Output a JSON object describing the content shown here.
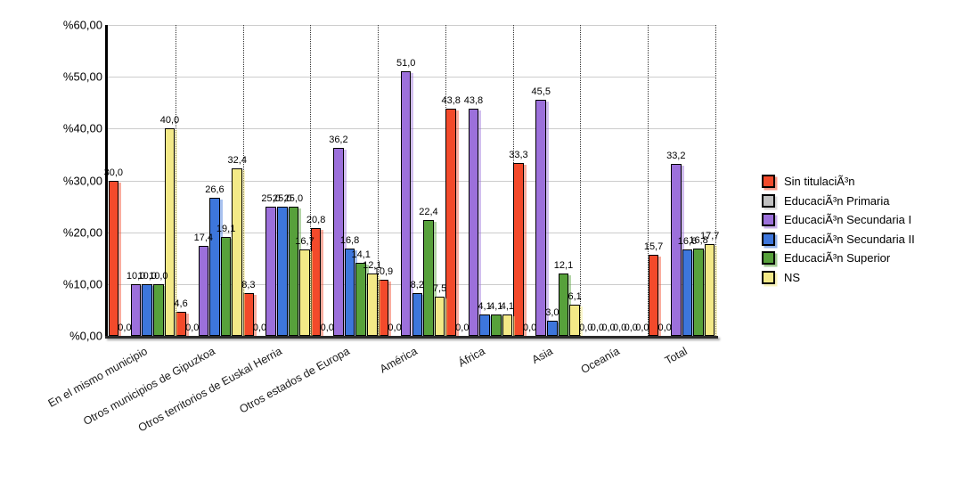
{
  "chart_data": {
    "type": "bar",
    "title": "",
    "xlabel": "",
    "ylabel": "",
    "categories": [
      "En el mismo municipio",
      "Otros municipios de Gipuzkoa",
      "Otros territorios de Euskal Herria",
      "Otros estados de Europa",
      "América",
      "África",
      "Asia",
      "Oceanía",
      "Total"
    ],
    "series": [
      {
        "name": "Sin titulaciÃ³n",
        "color": "#F34A2B",
        "values": [
          30.0,
          4.6,
          8.3,
          20.8,
          10.9,
          43.8,
          33.3,
          0.0,
          15.7
        ]
      },
      {
        "name": "EducaciÃ³n Primaria",
        "color": "#C0C0C0",
        "values": [
          0.0,
          0.0,
          0.0,
          0.0,
          0.0,
          0.0,
          0.0,
          0.0,
          0.0
        ]
      },
      {
        "name": "EducaciÃ³n Secundaria I",
        "color": "#9C70DB",
        "values": [
          10.0,
          17.4,
          25.0,
          36.2,
          51.0,
          43.8,
          45.5,
          0.0,
          33.2
        ]
      },
      {
        "name": "EducaciÃ³n Secundaria II",
        "color": "#3D76DC",
        "values": [
          10.0,
          26.6,
          25.0,
          16.8,
          8.2,
          4.1,
          3.0,
          0.0,
          16.6
        ]
      },
      {
        "name": "EducaciÃ³n Superior",
        "color": "#57A13B",
        "values": [
          10.0,
          19.1,
          25.0,
          14.1,
          22.4,
          4.1,
          12.1,
          0.0,
          16.8
        ]
      },
      {
        "name": "NS",
        "color": "#F3E987",
        "values": [
          40.0,
          32.4,
          16.7,
          12.1,
          7.5,
          4.1,
          6.1,
          0.0,
          17.7
        ]
      }
    ],
    "ylim": [
      0,
      60
    ],
    "ytick_step": 10,
    "ytick_labels": [
      "%60,00",
      "%50,00",
      "%40,00",
      "%30,00",
      "%20,00",
      "%10,00",
      "%0,00"
    ],
    "value_label_decimal_separator": ",",
    "value_label_decimals": 1,
    "grid": "horizontal solid gridlines + vertical dotted category separators",
    "legend_position": "right"
  },
  "colors": {
    "background": "#ffffff",
    "gridline": "#cccccc",
    "separator": "#333333",
    "axis": "#000000",
    "text": "#000000"
  }
}
